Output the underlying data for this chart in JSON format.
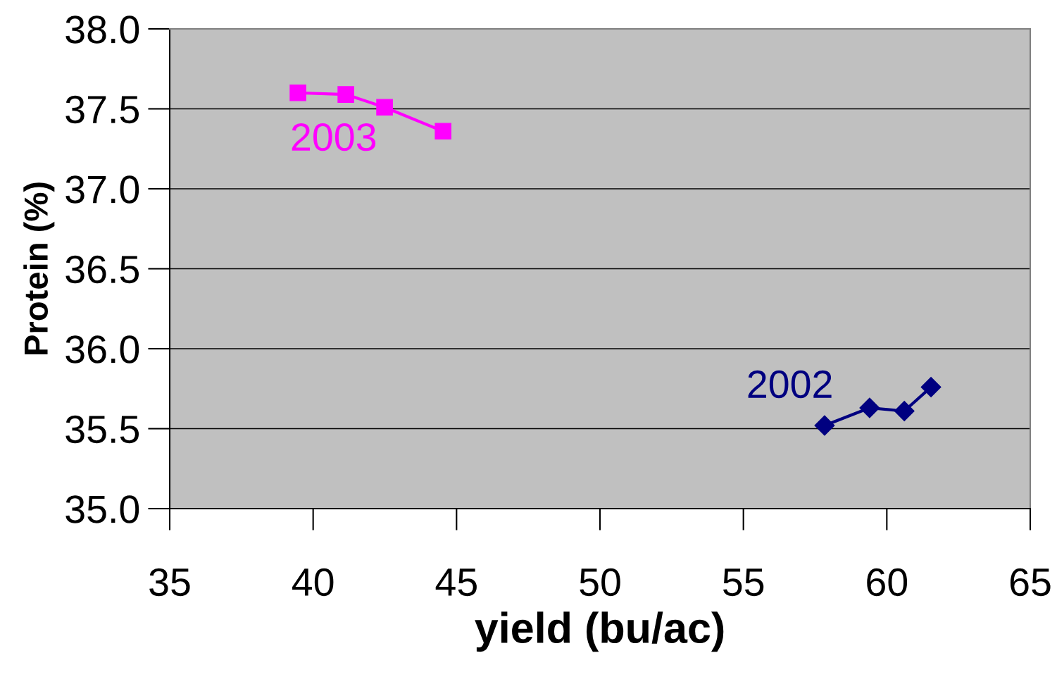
{
  "chart_data": {
    "type": "line",
    "xlabel": "yield (bu/ac)",
    "ylabel": "Protein (%)",
    "xlim": [
      35,
      65
    ],
    "xticks": [
      35,
      40,
      45,
      50,
      55,
      60,
      65
    ],
    "ylim": [
      35,
      38
    ],
    "yticks": [
      {
        "value": 35,
        "label": "35.0"
      },
      {
        "value": 35.5,
        "label": "35.5"
      },
      {
        "value": 36,
        "label": "36.0"
      },
      {
        "value": 36.5,
        "label": "36.5"
      },
      {
        "value": 37,
        "label": "37.0"
      },
      {
        "value": 37.5,
        "label": "37.5"
      },
      {
        "value": 38,
        "label": "38.0"
      }
    ],
    "grid": "y",
    "legend": false,
    "series": [
      {
        "name": "2003",
        "color": "#ff00ff",
        "marker": "square",
        "x": [
          39.47,
          41.14,
          42.49,
          44.53
        ],
        "values": [
          37.6,
          37.59,
          37.51,
          37.36
        ]
      },
      {
        "name": "2002",
        "color": "#000080",
        "marker": "diamond",
        "x": [
          57.83,
          59.4,
          60.61,
          61.54
        ],
        "values": [
          35.52,
          35.63,
          35.61,
          35.76
        ]
      }
    ]
  }
}
